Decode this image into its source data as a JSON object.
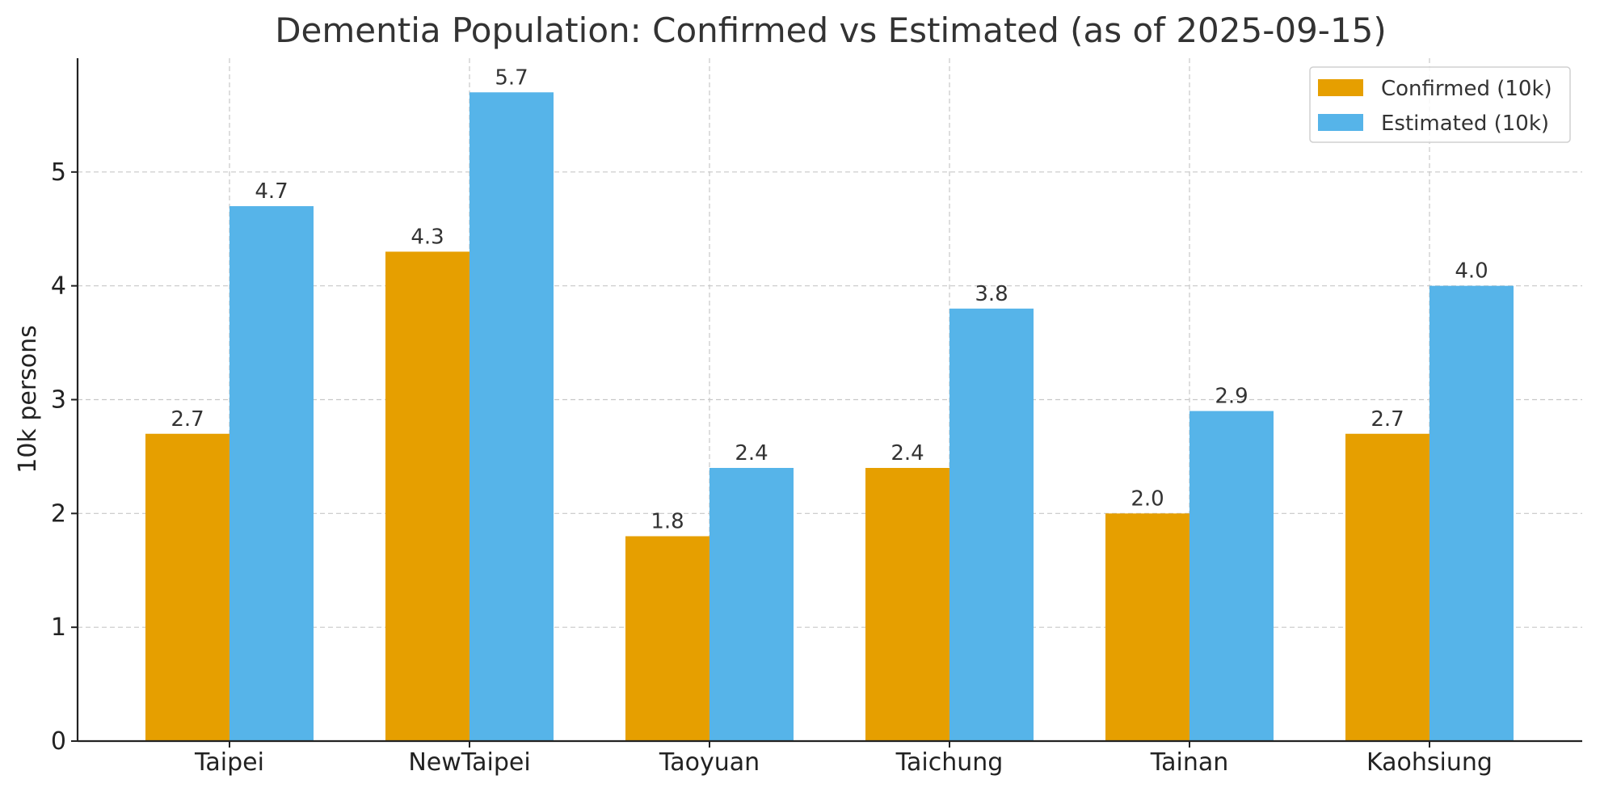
{
  "chart_data": {
    "type": "bar",
    "title": "Dementia Population: Confirmed vs Estimated (as of 2025-09-15)",
    "xlabel": "",
    "ylabel": "10k persons",
    "categories": [
      "Taipei",
      "NewTaipei",
      "Taoyuan",
      "Taichung",
      "Tainan",
      "Kaohsiung"
    ],
    "series": [
      {
        "name": "Confirmed (10k)",
        "color": "#E69F00",
        "values": [
          2.7,
          4.3,
          1.8,
          2.4,
          2.0,
          2.7
        ],
        "labels": [
          "2.7",
          "4.3",
          "1.8",
          "2.4",
          "2.0",
          "2.7"
        ]
      },
      {
        "name": "Estimated (10k)",
        "color": "#56B4E9",
        "values": [
          4.7,
          5.7,
          2.4,
          3.8,
          2.9,
          4.0
        ],
        "labels": [
          "4.7",
          "5.7",
          "2.4",
          "3.8",
          "2.9",
          "4.0"
        ]
      }
    ],
    "ylim": [
      0,
      6
    ],
    "yticks": [
      0,
      1,
      2,
      3,
      4,
      5
    ],
    "ytick_labels": [
      "0",
      "1",
      "2",
      "3",
      "4",
      "5"
    ],
    "grid": true,
    "legend_position": "top-right"
  }
}
